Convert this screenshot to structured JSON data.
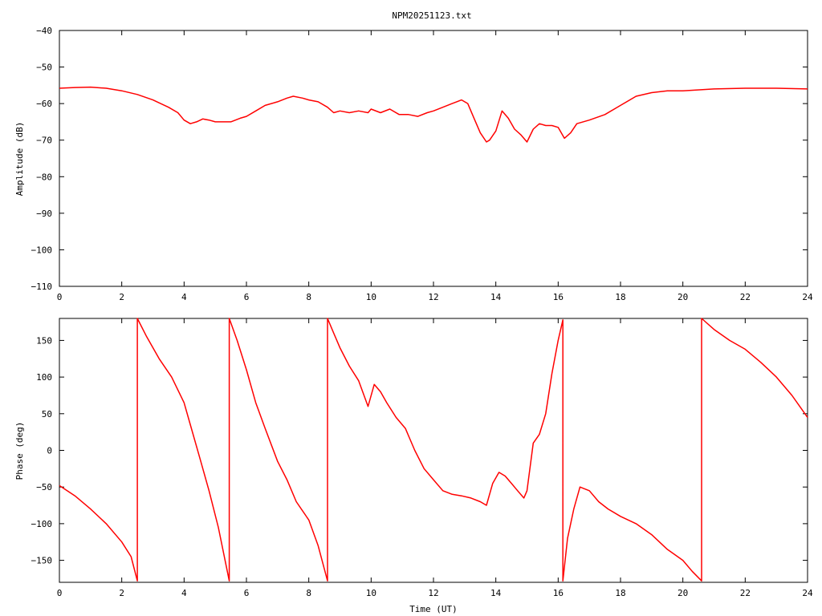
{
  "title": "NPM20251123.txt",
  "colors": {
    "series": "#ff0000",
    "axis": "#000000"
  },
  "chart_data": [
    {
      "type": "line",
      "title": "NPM20251123.txt",
      "xlabel": "",
      "ylabel": "Amplitude (dB)",
      "xlim": [
        0,
        24
      ],
      "ylim": [
        -110,
        -40
      ],
      "xticks": [
        0,
        2,
        4,
        6,
        8,
        10,
        12,
        14,
        16,
        18,
        20,
        22,
        24
      ],
      "yticks": [
        -40,
        -50,
        -60,
        -70,
        -80,
        -90,
        -100,
        -110
      ],
      "grid": false,
      "series": [
        {
          "x": [
            0,
            0.5,
            1,
            1.5,
            2,
            2.5,
            3,
            3.5,
            3.8,
            4.0,
            4.2,
            4.4,
            4.6,
            4.8,
            5.0,
            5.2,
            5.5,
            5.8,
            6.0,
            6.3,
            6.6,
            7.0,
            7.3,
            7.5,
            7.8,
            8.0,
            8.3,
            8.6,
            8.8,
            9.0,
            9.3,
            9.6,
            9.9,
            10.0,
            10.3,
            10.6,
            10.9,
            11.2,
            11.5,
            11.8,
            12.0,
            12.3,
            12.6,
            12.9,
            13.1,
            13.3,
            13.5,
            13.7,
            13.8,
            14.0,
            14.2,
            14.4,
            14.6,
            14.8,
            15.0,
            15.2,
            15.4,
            15.6,
            15.8,
            16.0,
            16.2,
            16.4,
            16.6,
            17.0,
            17.5,
            18.0,
            18.5,
            19.0,
            19.5,
            20.0,
            21.0,
            22.0,
            23.0,
            24.0
          ],
          "values": [
            -55.8,
            -55.6,
            -55.5,
            -55.8,
            -56.5,
            -57.5,
            -59.0,
            -61.0,
            -62.5,
            -64.5,
            -65.5,
            -65.0,
            -64.2,
            -64.5,
            -65.0,
            -65.0,
            -65.0,
            -64.0,
            -63.5,
            -62.0,
            -60.5,
            -59.5,
            -58.5,
            -58.0,
            -58.5,
            -59.0,
            -59.5,
            -61.0,
            -62.5,
            -62.0,
            -62.5,
            -62.0,
            -62.5,
            -61.5,
            -62.5,
            -61.5,
            -63.0,
            -63.0,
            -63.5,
            -62.5,
            -62.0,
            -61.0,
            -60.0,
            -59.0,
            -60.0,
            -64.0,
            -68.0,
            -70.5,
            -70.0,
            -67.5,
            -62.0,
            -64.0,
            -67.0,
            -68.5,
            -70.5,
            -67.0,
            -65.5,
            -66.0,
            -66.0,
            -66.5,
            -69.5,
            -68.0,
            -65.5,
            -64.5,
            -63.0,
            -60.5,
            -58.0,
            -57.0,
            -56.5,
            -56.5,
            -56.0,
            -55.8,
            -55.8,
            -56.0
          ]
        }
      ]
    },
    {
      "type": "line",
      "title": "",
      "xlabel": "Time (UT)",
      "ylabel": "Phase (deg)",
      "xlim": [
        0,
        24
      ],
      "ylim": [
        -180,
        180
      ],
      "xticks": [
        0,
        2,
        4,
        6,
        8,
        10,
        12,
        14,
        16,
        18,
        20,
        22,
        24
      ],
      "yticks": [
        150,
        100,
        50,
        0,
        -50,
        -100,
        -150
      ],
      "grid": false,
      "series": [
        {
          "x": [
            0,
            0.5,
            1.0,
            1.5,
            2.0,
            2.3,
            2.5,
            2.5,
            2.8,
            3.2,
            3.6,
            4.0,
            4.2,
            4.5,
            4.8,
            5.1,
            5.45,
            5.45,
            5.7,
            6.0,
            6.3,
            6.6,
            7.0,
            7.3,
            7.6,
            8.0,
            8.3,
            8.6,
            8.6,
            8.8,
            9.0,
            9.3,
            9.6,
            9.9,
            10.1,
            10.3,
            10.5,
            10.8,
            11.1,
            11.4,
            11.7,
            12.0,
            12.3,
            12.6,
            12.9,
            13.2,
            13.5,
            13.7,
            13.9,
            14.1,
            14.3,
            14.5,
            14.7,
            14.9,
            15.0,
            15.2,
            15.4,
            15.6,
            15.8,
            16.0,
            16.15,
            16.15,
            16.3,
            16.5,
            16.7,
            17.0,
            17.3,
            17.6,
            18.0,
            18.5,
            19.0,
            19.5,
            20.0,
            20.3,
            20.6,
            20.6,
            21.0,
            21.5,
            22.0,
            22.5,
            23.0,
            23.5,
            24.0
          ],
          "values": [
            -48,
            -62,
            -80,
            -100,
            -125,
            -145,
            -178,
            180,
            155,
            125,
            100,
            65,
            35,
            -10,
            -55,
            -105,
            -178,
            180,
            150,
            110,
            65,
            30,
            -15,
            -40,
            -70,
            -95,
            -130,
            -178,
            180,
            160,
            140,
            115,
            95,
            60,
            90,
            80,
            65,
            45,
            30,
            0,
            -25,
            -40,
            -55,
            -60,
            -62,
            -65,
            -70,
            -75,
            -45,
            -30,
            -35,
            -45,
            -55,
            -65,
            -55,
            10,
            22,
            50,
            105,
            150,
            178,
            -178,
            -120,
            -80,
            -50,
            -55,
            -70,
            -80,
            -90,
            -100,
            -115,
            -135,
            -150,
            -165,
            -178,
            180,
            165,
            150,
            138,
            120,
            100,
            75,
            45
          ]
        }
      ]
    }
  ]
}
